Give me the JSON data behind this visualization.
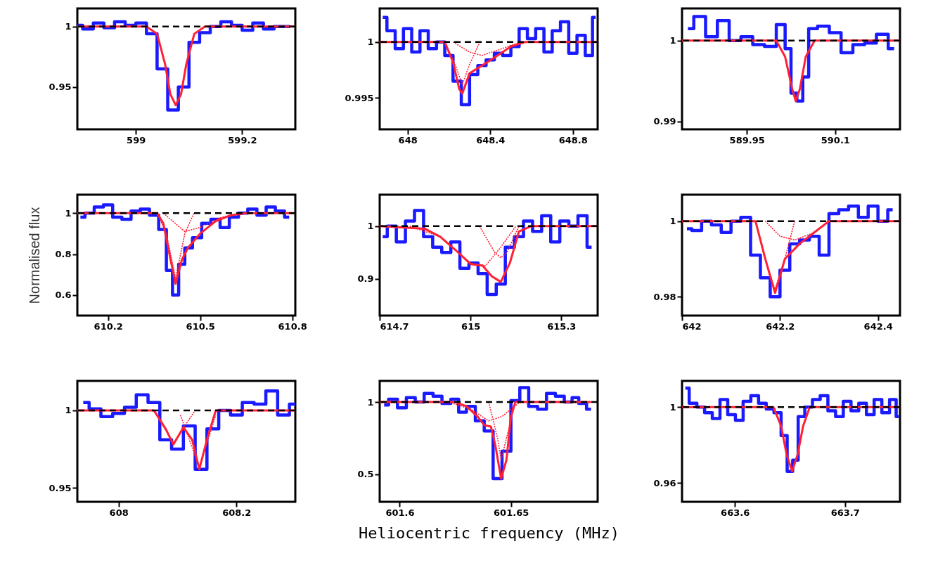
{
  "chart_data": [
    {
      "type": "line",
      "xlim": [
        598.89,
        599.3
      ],
      "ylim": [
        0.915,
        1.015
      ],
      "xticks": [
        599,
        599.2
      ],
      "yticks": [
        1,
        0.95
      ],
      "ref_lines": [
        {
          "axis": "y",
          "value": 1,
          "color": "#000000",
          "line_style": "dashed"
        }
      ],
      "series": [
        {
          "type": "step",
          "color": "#1a1aff",
          "x": [
            598.89,
            598.91,
            598.93,
            598.95,
            598.97,
            598.99,
            599.01,
            599.03,
            599.05,
            599.07,
            599.09,
            599.11,
            599.13,
            599.15,
            599.17,
            599.19,
            599.21,
            599.23,
            599.25,
            599.27,
            599.29
          ],
          "values": [
            1.001,
            0.998,
            1.003,
            0.999,
            1.004,
            1.001,
            1.003,
            0.994,
            0.965,
            0.931,
            0.95,
            0.987,
            0.995,
            1.0,
            1.004,
            1.001,
            0.997,
            1.003,
            0.998,
            1.0,
            1.0
          ]
        },
        {
          "type": "line",
          "color": "#ff2035",
          "x": [
            598.89,
            599.02,
            599.04,
            599.055,
            599.065,
            599.075,
            599.085,
            599.095,
            599.11,
            599.13,
            599.3
          ],
          "values": [
            1,
            1,
            0.994,
            0.969,
            0.944,
            0.935,
            0.944,
            0.969,
            0.994,
            1,
            1
          ]
        }
      ]
    },
    {
      "type": "line",
      "xlim": [
        647.865,
        648.92
      ],
      "ylim": [
        0.9922,
        1.003
      ],
      "xticks": [
        648,
        648.4,
        648.8
      ],
      "yticks": [
        1,
        0.995
      ],
      "ref_lines": [
        {
          "axis": "y",
          "value": 1,
          "color": "#000000",
          "line_style": "dashed"
        }
      ],
      "series": [
        {
          "type": "step",
          "color": "#1a1aff",
          "x": [
            647.88,
            647.92,
            647.96,
            648.0,
            648.04,
            648.08,
            648.12,
            648.16,
            648.2,
            648.24,
            648.28,
            648.32,
            648.36,
            648.4,
            648.44,
            648.48,
            648.52,
            648.56,
            648.6,
            648.64,
            648.68,
            648.72,
            648.76,
            648.8,
            648.84,
            648.88,
            648.91
          ],
          "values": [
            1.0022,
            1.001,
            0.9994,
            1.0012,
            0.9991,
            1.001,
            0.9994,
            1.0,
            0.9988,
            0.9965,
            0.9944,
            0.9971,
            0.9979,
            0.9984,
            0.999,
            0.9988,
            0.9996,
            1.0012,
            1.0003,
            1.0012,
            0.9991,
            1.001,
            1.0018,
            0.999,
            1.0006,
            0.9988,
            1.0022
          ]
        },
        {
          "type": "line",
          "line_style": "dotted",
          "color": "#ff2035",
          "x": [
            648.18,
            648.23,
            648.265,
            648.3,
            648.35
          ],
          "values": [
            1,
            0.998,
            0.9962,
            0.998,
            1
          ]
        },
        {
          "type": "line",
          "line_style": "dotted",
          "color": "#ff2035",
          "x": [
            648.22,
            648.3,
            648.36,
            648.44,
            648.55
          ],
          "values": [
            1,
            0.9991,
            0.9988,
            0.9993,
            1
          ]
        },
        {
          "type": "line",
          "color": "#ff2035",
          "x": [
            647.865,
            648.18,
            648.22,
            648.25,
            648.265,
            648.3,
            648.36,
            648.42,
            648.5,
            648.57,
            648.92
          ],
          "values": [
            1,
            1,
            0.9982,
            0.9958,
            0.9954,
            0.9972,
            0.9979,
            0.9986,
            0.9996,
            1,
            1
          ]
        }
      ]
    },
    {
      "type": "line",
      "xlim": [
        589.84,
        590.21
      ],
      "ylim": [
        0.989,
        1.004
      ],
      "xticks": [
        589.95,
        590.1
      ],
      "yticks": [
        1,
        0.99
      ],
      "ref_lines": [
        {
          "axis": "y",
          "value": 1,
          "color": "#000000",
          "line_style": "dashed"
        }
      ],
      "series": [
        {
          "type": "step",
          "color": "#1a1aff",
          "x": [
            589.85,
            589.87,
            589.89,
            589.91,
            589.93,
            589.95,
            589.97,
            589.99,
            590.01,
            590.02,
            590.03,
            590.04,
            590.05,
            590.06,
            590.08,
            590.1,
            590.12,
            590.14,
            590.16,
            590.18,
            590.2
          ],
          "values": [
            1.0015,
            1.003,
            1.0005,
            1.0025,
            1.0,
            1.0005,
            0.9995,
            0.9993,
            1.002,
            0.999,
            0.9935,
            0.9925,
            0.9955,
            1.0015,
            1.0018,
            1.001,
            0.9985,
            0.9995,
            0.9997,
            1.0008,
            0.999
          ]
        },
        {
          "type": "line",
          "color": "#ff2035",
          "x": [
            589.84,
            590.0,
            590.015,
            590.027,
            590.033,
            590.04,
            590.05,
            590.065,
            590.21
          ],
          "values": [
            1,
            1,
            0.998,
            0.994,
            0.9925,
            0.994,
            0.998,
            1,
            1
          ]
        }
      ]
    },
    {
      "type": "line",
      "ylabel": "Normalised flux",
      "xlim": [
        610.1,
        610.81
      ],
      "ylim": [
        0.5,
        1.09
      ],
      "xticks": [
        610.2,
        610.5,
        610.8
      ],
      "yticks": [
        1,
        0.8,
        0.6
      ],
      "ref_lines": [
        {
          "axis": "y",
          "value": 1,
          "color": "#000000",
          "line_style": "dashed"
        }
      ],
      "series": [
        {
          "type": "step",
          "color": "#1a1aff",
          "x": [
            610.11,
            610.14,
            610.17,
            610.2,
            610.23,
            610.26,
            610.29,
            610.32,
            610.35,
            610.38,
            610.4,
            610.42,
            610.44,
            610.46,
            610.49,
            610.52,
            610.55,
            610.58,
            610.61,
            610.64,
            610.67,
            610.7,
            610.73,
            610.76,
            610.79
          ],
          "values": [
            0.98,
            1.0,
            1.03,
            1.04,
            0.98,
            0.97,
            1.01,
            1.02,
            0.99,
            0.92,
            0.72,
            0.6,
            0.75,
            0.83,
            0.88,
            0.95,
            0.97,
            0.93,
            0.98,
            1.0,
            1.02,
            0.99,
            1.03,
            1.01,
            0.98
          ]
        },
        {
          "type": "line",
          "line_style": "dotted",
          "color": "#ff2035",
          "x": [
            610.36,
            610.39,
            610.42,
            610.45,
            610.48
          ],
          "values": [
            1,
            0.9,
            0.68,
            0.9,
            1
          ]
        },
        {
          "type": "line",
          "line_style": "dotted",
          "color": "#ff2035",
          "x": [
            610.38,
            610.45,
            610.5,
            610.57,
            610.65
          ],
          "values": [
            1,
            0.91,
            0.93,
            0.98,
            1
          ]
        },
        {
          "type": "line",
          "color": "#ff2035",
          "x": [
            610.1,
            610.36,
            610.38,
            610.4,
            610.42,
            610.44,
            610.46,
            610.5,
            610.55,
            610.6,
            610.65,
            610.81
          ],
          "values": [
            1,
            1,
            0.95,
            0.8,
            0.655,
            0.77,
            0.83,
            0.9,
            0.96,
            0.99,
            1,
            1
          ]
        }
      ]
    },
    {
      "type": "line",
      "xlim": [
        614.7,
        615.42
      ],
      "ylim": [
        0.83,
        1.06
      ],
      "xticks": [
        614.7,
        615,
        615.3
      ],
      "yticks": [
        1,
        0.9
      ],
      "ref_lines": [
        {
          "axis": "y",
          "value": 1,
          "color": "#000000",
          "line_style": "dashed"
        }
      ],
      "series": [
        {
          "type": "step",
          "color": "#1a1aff",
          "x": [
            614.71,
            614.74,
            614.77,
            614.8,
            614.83,
            614.86,
            614.89,
            614.92,
            614.95,
            614.98,
            615.01,
            615.04,
            615.07,
            615.1,
            615.13,
            615.16,
            615.19,
            615.22,
            615.25,
            615.28,
            615.31,
            615.34,
            615.37,
            615.4
          ],
          "values": [
            0.98,
            1.0,
            0.97,
            1.01,
            1.03,
            0.98,
            0.96,
            0.95,
            0.97,
            0.92,
            0.93,
            0.91,
            0.87,
            0.89,
            0.96,
            0.98,
            1.01,
            0.99,
            1.02,
            0.97,
            1.01,
            1.0,
            1.02,
            0.96
          ]
        },
        {
          "type": "line",
          "line_style": "dotted",
          "color": "#ff2035",
          "x": [
            614.8,
            614.9,
            615.0,
            615.05,
            615.1,
            615.15
          ],
          "values": [
            1,
            0.98,
            0.93,
            0.925,
            0.96,
            1
          ]
        },
        {
          "type": "line",
          "line_style": "dotted",
          "color": "#ff2035",
          "x": [
            615.03,
            615.08,
            615.1,
            615.12,
            615.16
          ],
          "values": [
            1,
            0.95,
            0.94,
            0.95,
            1
          ]
        },
        {
          "type": "line",
          "color": "#ff2035",
          "x": [
            614.7,
            614.85,
            614.9,
            614.95,
            615.0,
            615.04,
            615.07,
            615.1,
            615.13,
            615.16,
            615.2,
            615.42
          ],
          "values": [
            1,
            0.995,
            0.98,
            0.955,
            0.928,
            0.925,
            0.905,
            0.894,
            0.93,
            0.99,
            1,
            1
          ]
        }
      ]
    },
    {
      "type": "line",
      "xlim": [
        642,
        642.445
      ],
      "ylim": [
        0.975,
        1.007
      ],
      "xticks": [
        642,
        642.2,
        642.4
      ],
      "yticks": [
        1,
        0.98
      ],
      "ref_lines": [
        {
          "axis": "y",
          "value": 1,
          "color": "#000000",
          "line_style": "dashed"
        }
      ],
      "series": [
        {
          "type": "step",
          "color": "#1a1aff",
          "x": [
            642.01,
            642.03,
            642.05,
            642.07,
            642.09,
            642.11,
            642.13,
            642.15,
            642.17,
            642.19,
            642.21,
            642.23,
            642.25,
            642.27,
            642.29,
            642.31,
            642.33,
            642.35,
            642.37,
            642.39,
            642.41,
            642.43
          ],
          "values": [
            0.998,
            0.9975,
            1.0,
            0.999,
            0.997,
            1.0,
            1.001,
            0.991,
            0.985,
            0.98,
            0.987,
            0.994,
            0.995,
            0.996,
            0.991,
            1.002,
            1.003,
            1.004,
            1.001,
            1.004,
            1.0,
            1.003
          ]
        },
        {
          "type": "line",
          "line_style": "dotted",
          "color": "#ff2035",
          "x": [
            642.15,
            642.18,
            642.19,
            642.21,
            642.23
          ],
          "values": [
            1,
            0.985,
            0.982,
            0.99,
            1
          ]
        },
        {
          "type": "line",
          "line_style": "dotted",
          "color": "#ff2035",
          "x": [
            642.17,
            642.2,
            642.23,
            642.27,
            642.3
          ],
          "values": [
            1,
            0.996,
            0.995,
            0.997,
            1
          ]
        },
        {
          "type": "line",
          "color": "#ff2035",
          "x": [
            642,
            642.15,
            642.17,
            642.19,
            642.21,
            642.24,
            642.27,
            642.3,
            642.445
          ],
          "values": [
            1,
            1,
            0.99,
            0.981,
            0.99,
            0.994,
            0.997,
            1,
            1
          ]
        }
      ]
    },
    {
      "type": "line",
      "xlim": [
        607.93,
        608.3
      ],
      "ylim": [
        0.941,
        1.019
      ],
      "xticks": [
        608,
        608.2
      ],
      "yticks": [
        1,
        0.95
      ],
      "ref_lines": [
        {
          "axis": "y",
          "value": 1,
          "color": "#000000",
          "line_style": "dashed"
        }
      ],
      "series": [
        {
          "type": "step",
          "color": "#1a1aff",
          "x": [
            607.94,
            607.96,
            607.98,
            608.0,
            608.02,
            608.04,
            608.06,
            608.08,
            608.1,
            608.12,
            608.14,
            608.16,
            608.18,
            608.2,
            608.22,
            608.24,
            608.26,
            608.28,
            608.3
          ],
          "values": [
            1.005,
            1.001,
            0.996,
            0.998,
            1.002,
            1.01,
            1.005,
            0.981,
            0.975,
            0.99,
            0.962,
            0.988,
            1.0,
            0.997,
            1.005,
            1.004,
            1.0125,
            0.997,
            1.004
          ]
        },
        {
          "type": "line",
          "line_style": "dotted",
          "color": "#ff2035",
          "x": [
            608.06,
            608.093,
            608.13
          ],
          "values": [
            1,
            0.979,
            1
          ]
        },
        {
          "type": "line",
          "line_style": "dotted",
          "color": "#ff2035",
          "x": [
            608.105,
            608.137,
            608.165
          ],
          "values": [
            0.997,
            0.963,
            0.997
          ]
        },
        {
          "type": "line",
          "color": "#ff2035",
          "x": [
            607.93,
            608.06,
            608.08,
            608.093,
            608.11,
            608.125,
            608.137,
            608.15,
            608.165,
            608.3
          ],
          "values": [
            1,
            1,
            0.988,
            0.978,
            0.989,
            0.981,
            0.962,
            0.981,
            1,
            1
          ]
        }
      ]
    },
    {
      "type": "line",
      "xlabel": "Heliocentric frequency (MHz)",
      "xlim": [
        601.591,
        601.689
      ],
      "ylim": [
        0.31,
        1.146
      ],
      "xticks": [
        601.6,
        601.65
      ],
      "yticks": [
        1,
        0.5
      ],
      "ref_lines": [
        {
          "axis": "y",
          "value": 1,
          "color": "#000000",
          "line_style": "dashed"
        }
      ],
      "series": [
        {
          "type": "step",
          "color": "#1a1aff",
          "x": [
            601.593,
            601.597,
            601.601,
            601.605,
            601.609,
            601.613,
            601.617,
            601.621,
            601.625,
            601.628,
            601.632,
            601.636,
            601.64,
            601.644,
            601.648,
            601.652,
            601.656,
            601.66,
            601.664,
            601.668,
            601.672,
            601.676,
            601.679,
            601.682,
            601.686
          ],
          "values": [
            0.98,
            1.02,
            0.96,
            1.03,
            1.0,
            1.06,
            1.04,
            0.99,
            1.02,
            0.93,
            0.97,
            0.87,
            0.8,
            0.47,
            0.66,
            1.01,
            1.1,
            0.97,
            0.95,
            1.06,
            1.04,
            1.0,
            1.03,
            0.99,
            0.95
          ]
        },
        {
          "type": "line",
          "line_style": "dotted",
          "color": "#ff2035",
          "x": [
            601.622,
            601.632,
            601.64,
            601.646,
            601.654
          ],
          "values": [
            1,
            0.95,
            0.87,
            0.9,
            1
          ]
        },
        {
          "type": "line",
          "line_style": "dotted",
          "color": "#ff2035",
          "x": [
            601.64,
            601.644,
            601.6456,
            601.648,
            601.652
          ],
          "values": [
            1,
            0.75,
            0.6,
            0.75,
            1
          ]
        },
        {
          "type": "line",
          "color": "#ff2035",
          "x": [
            601.591,
            601.625,
            601.63,
            601.635,
            601.638,
            601.641,
            601.643,
            601.6456,
            601.648,
            601.65,
            601.652,
            601.686
          ],
          "values": [
            1,
            1,
            0.97,
            0.9,
            0.84,
            0.83,
            0.7,
            0.47,
            0.6,
            0.9,
            1,
            1
          ]
        }
      ]
    },
    {
      "type": "line",
      "xlim": [
        663.552,
        663.75
      ],
      "ylim": [
        0.95,
        1.0138
      ],
      "xticks": [
        663.6,
        663.7
      ],
      "yticks": [
        1,
        0.96
      ],
      "ref_lines": [
        {
          "axis": "y",
          "value": 1,
          "color": "#000000",
          "line_style": "dashed"
        }
      ],
      "series": [
        {
          "type": "step",
          "color": "#1a1aff",
          "x": [
            663.555,
            663.562,
            663.569,
            663.576,
            663.583,
            663.59,
            663.597,
            663.604,
            663.611,
            663.618,
            663.625,
            663.632,
            663.639,
            663.645,
            663.65,
            663.655,
            663.66,
            663.667,
            663.674,
            663.681,
            663.688,
            663.695,
            663.702,
            663.709,
            663.716,
            663.723,
            663.73,
            663.737,
            663.744,
            663.749
          ],
          "values": [
            1.01,
            1.002,
            1.0,
            0.997,
            0.994,
            1.004,
            0.996,
            0.993,
            1.003,
            1.006,
            1.002,
            0.999,
            0.997,
            0.985,
            0.966,
            0.972,
            0.995,
            1.0,
            1.004,
            1.006,
            0.998,
            0.995,
            1.003,
            0.998,
            1.002,
            0.996,
            1.004,
            0.997,
            1.004,
            0.995
          ]
        },
        {
          "type": "line",
          "color": "#ff2035",
          "x": [
            663.552,
            663.635,
            663.642,
            663.647,
            663.652,
            663.657,
            663.662,
            663.668,
            663.75
          ],
          "values": [
            1,
            1,
            0.99,
            0.975,
            0.966,
            0.975,
            0.99,
            1,
            1
          ]
        }
      ]
    }
  ]
}
